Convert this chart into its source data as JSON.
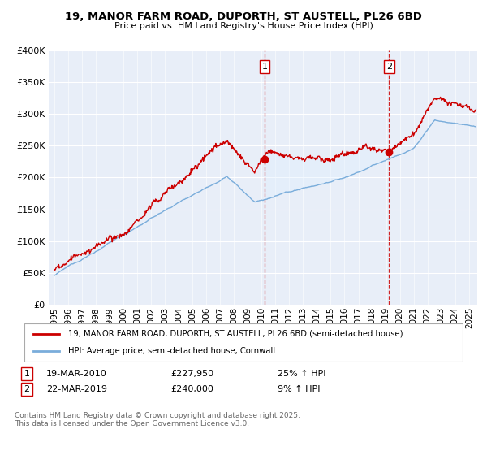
{
  "title_line1": "19, MANOR FARM ROAD, DUPORTH, ST AUSTELL, PL26 6BD",
  "title_line2": "Price paid vs. HM Land Registry's House Price Index (HPI)",
  "legend_label1": "19, MANOR FARM ROAD, DUPORTH, ST AUSTELL, PL26 6BD (semi-detached house)",
  "legend_label2": "HPI: Average price, semi-detached house, Cornwall",
  "marker1_date": "19-MAR-2010",
  "marker1_price": "£227,950",
  "marker1_hpi": "25% ↑ HPI",
  "marker2_date": "22-MAR-2019",
  "marker2_price": "£240,000",
  "marker2_hpi": "9% ↑ HPI",
  "footnote": "Contains HM Land Registry data © Crown copyright and database right 2025.\nThis data is licensed under the Open Government Licence v3.0.",
  "line1_color": "#cc0000",
  "line2_color": "#7aaddb",
  "vline_color": "#cc0000",
  "shade_color": "#ddeeff",
  "bg_color": "#e8eef8",
  "grid_color": "#ffffff",
  "ylim": [
    0,
    400000
  ],
  "yticks": [
    0,
    50000,
    100000,
    150000,
    200000,
    250000,
    300000,
    350000,
    400000
  ],
  "marker1_x": 2010.22,
  "marker1_y": 227950,
  "marker2_x": 2019.22,
  "marker2_y": 240000,
  "xmin": 1995,
  "xmax": 2025
}
